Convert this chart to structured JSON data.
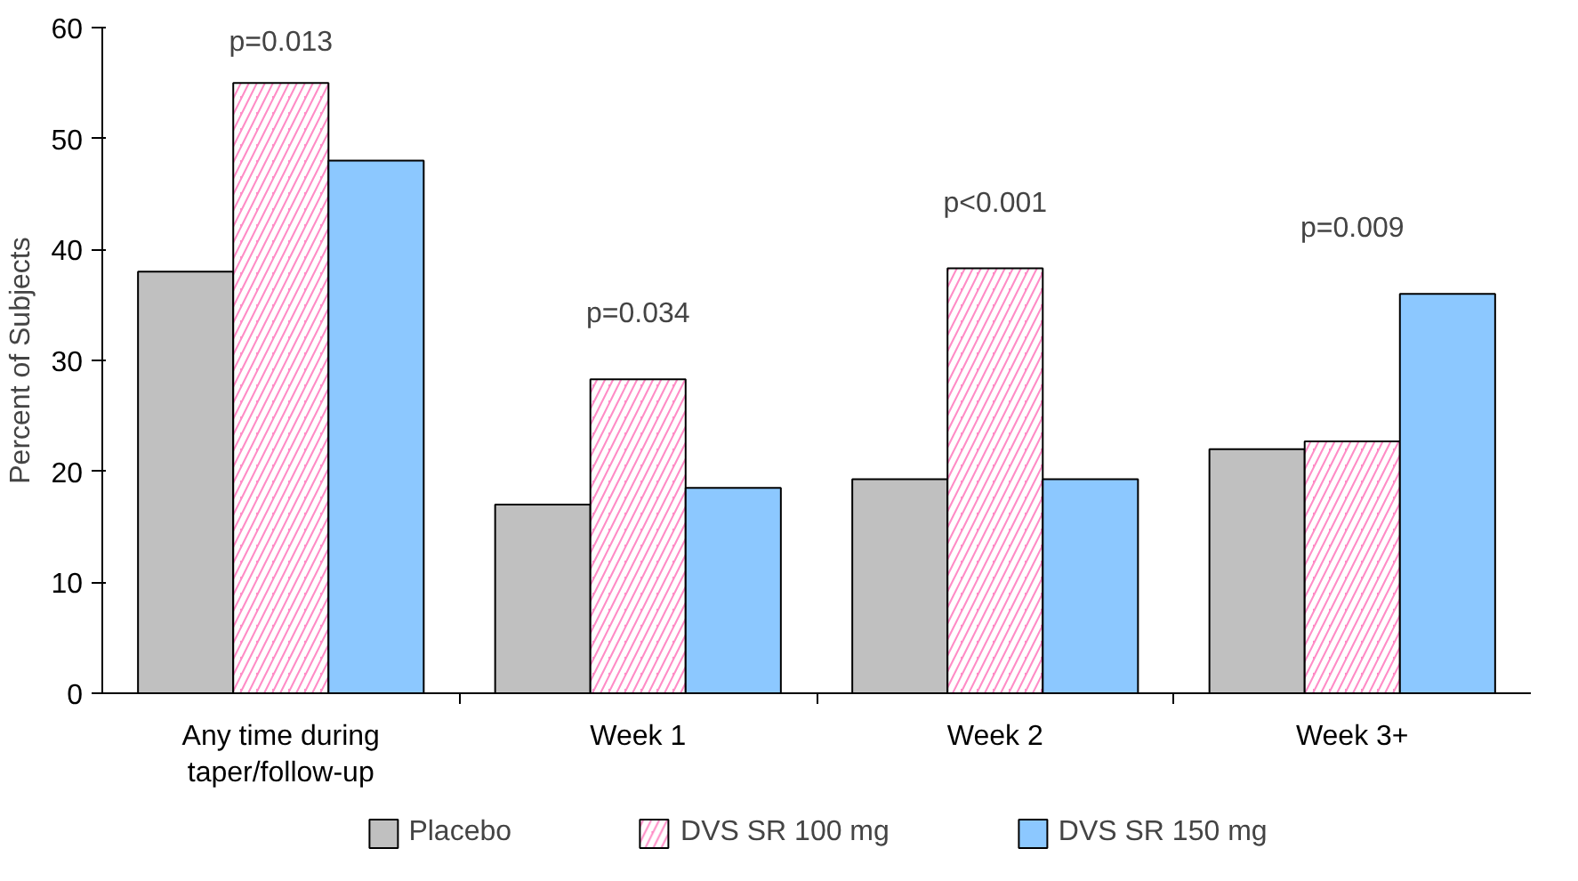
{
  "chart_data": {
    "type": "bar",
    "ylabel": "Percent of Subjects",
    "categories": [
      "Any time during\ntaper/follow-up",
      "Week 1",
      "Week 2",
      "Week 3+"
    ],
    "series": [
      {
        "name": "Placebo",
        "color": "#c0c0c0",
        "values": [
          38,
          17,
          19.3,
          22
        ]
      },
      {
        "name": "DVS SR 100 mg",
        "color": "#ff8cc6",
        "values": [
          55,
          28.3,
          38.3,
          22.7
        ]
      },
      {
        "name": "DVS SR 150 mg",
        "color": "#8cc8ff",
        "values": [
          48,
          18.5,
          19.3,
          36
        ]
      }
    ],
    "ylim": [
      0,
      60
    ],
    "yticks": [
      0,
      10,
      20,
      30,
      40,
      50,
      60
    ],
    "grid": false,
    "legend": "bottom",
    "annotations": [
      "p=0.013",
      "p=0.034",
      "p<0.001",
      "p=0.009"
    ]
  }
}
